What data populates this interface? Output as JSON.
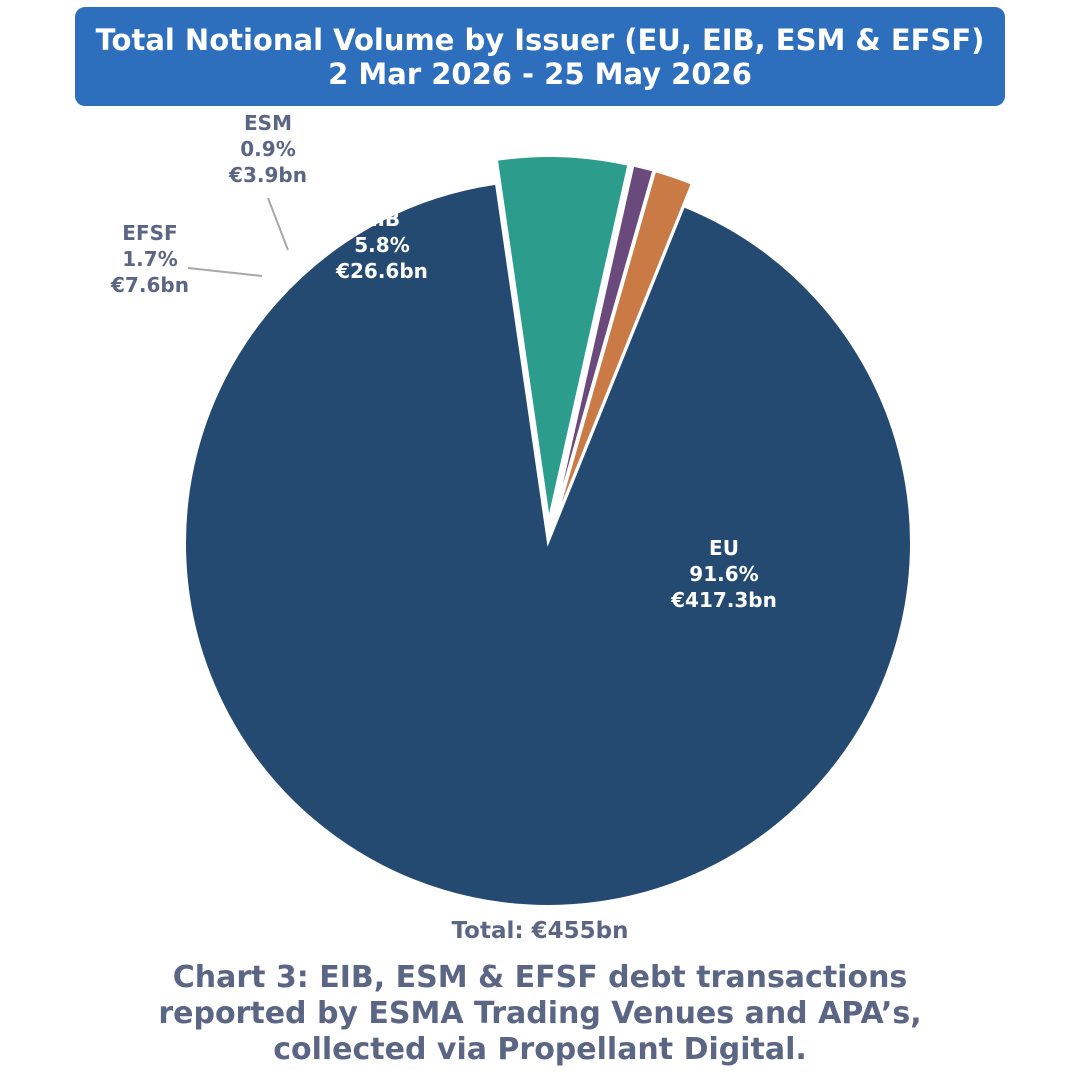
{
  "title": {
    "line1": "Total Notional Volume by Issuer (EU, EIB, ESM & EFSF)",
    "line2": "2 Mar 2026 - 25 May 2026"
  },
  "total_label": "Total: €455bn",
  "caption": {
    "line1": "Chart 3: EIB, ESM & EFSF debt transactions",
    "line2": "reported by ESMA Trading Venues and APA’s,",
    "line3": "collected via Propellant Digital."
  },
  "colors": {
    "banner": "#2e6fbd",
    "text_muted": "#5b6584",
    "EU": "#254a72",
    "EIB": "#2c9d8c",
    "ESM": "#6a4a7c",
    "EFSF": "#c97a45"
  },
  "chart_data": {
    "type": "pie",
    "title": "Total Notional Volume by Issuer (EU, EIB, ESM & EFSF)",
    "subtitle": "2 Mar 2026 - 25 May 2026",
    "total": "Total: €455bn",
    "slices": [
      {
        "name": "EU",
        "percent": 91.6,
        "value_label": "€417.3bn",
        "value_bn": 417.3,
        "color": "#254a72",
        "exploded": false
      },
      {
        "name": "EIB",
        "percent": 5.8,
        "value_label": "€26.6bn",
        "value_bn": 26.6,
        "color": "#2c9d8c",
        "exploded": true
      },
      {
        "name": "ESM",
        "percent": 0.9,
        "value_label": "€3.9bn",
        "value_bn": 3.9,
        "color": "#6a4a7c",
        "exploded": true
      },
      {
        "name": "EFSF",
        "percent": 1.7,
        "value_label": "€7.6bn",
        "value_bn": 7.6,
        "color": "#c97a45",
        "exploded": true
      }
    ]
  }
}
